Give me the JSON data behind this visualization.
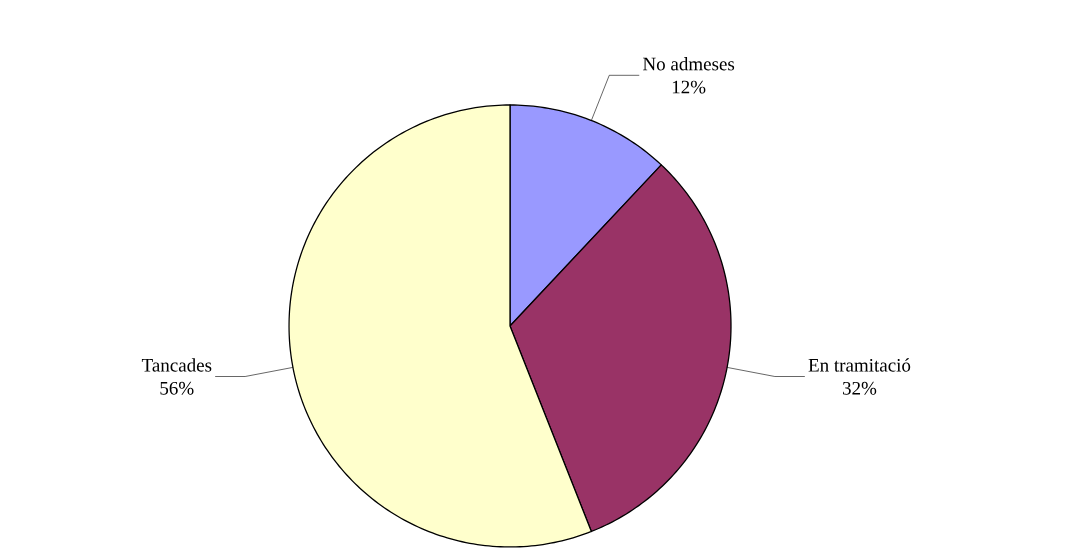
{
  "chart_data": {
    "type": "pie",
    "categories": [
      "No admeses",
      "En tramitació",
      "Tancades"
    ],
    "values": [
      12,
      32,
      56
    ],
    "colors": [
      "#9999ff",
      "#993366",
      "#ffffcc"
    ],
    "value_labels": [
      "12%",
      "32%",
      "56%"
    ]
  }
}
